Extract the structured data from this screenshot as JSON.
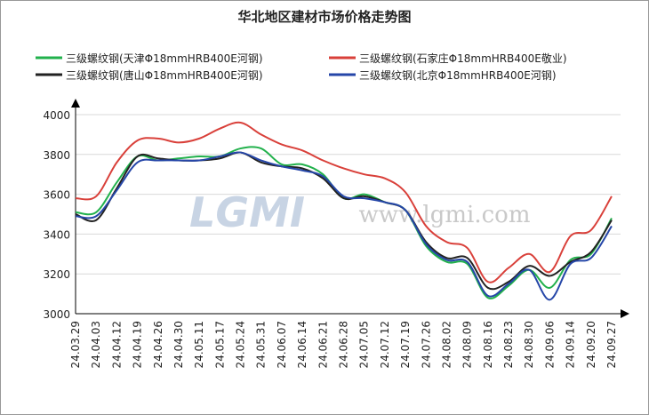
{
  "chart_data": {
    "type": "line",
    "title": "华北地区建材市场价格走势图",
    "watermark": "LGMI",
    "watermark_url": "www.lgmi.com",
    "categories": [
      "24.03.29",
      "24.04.03",
      "24.04.12",
      "24.04.19",
      "24.04.26",
      "24.04.30",
      "24.05.11",
      "24.05.17",
      "24.05.24",
      "24.05.31",
      "24.06.07",
      "24.06.14",
      "24.06.21",
      "24.06.28",
      "24.07.05",
      "24.07.12",
      "24.07.19",
      "24.07.26",
      "24.08.02",
      "24.08.09",
      "24.08.16",
      "24.08.23",
      "24.08.30",
      "24.09.06",
      "24.09.14",
      "24.09.20",
      "24.09.27"
    ],
    "series": [
      {
        "name": "三级螺纹钢(天津Φ18mmHRB400E河钢)",
        "color": "#22b14c",
        "values": [
          3510,
          3510,
          3660,
          3790,
          3770,
          3780,
          3790,
          3790,
          3830,
          3830,
          3750,
          3750,
          3700,
          3580,
          3600,
          3560,
          3520,
          3340,
          3260,
          3250,
          3080,
          3140,
          3220,
          3130,
          3270,
          3300,
          3480
        ]
      },
      {
        "name": "三级螺纹钢(石家庄Φ18mmHRB400E敬业)",
        "color": "#d9403a",
        "values": [
          3580,
          3590,
          3760,
          3870,
          3880,
          3860,
          3880,
          3930,
          3960,
          3900,
          3850,
          3820,
          3770,
          3730,
          3700,
          3680,
          3610,
          3440,
          3360,
          3330,
          3160,
          3230,
          3300,
          3210,
          3390,
          3420,
          3590
        ]
      },
      {
        "name": "三级螺纹钢(唐山Φ18mmHRB400E河钢)",
        "color": "#222222",
        "values": [
          3500,
          3470,
          3630,
          3790,
          3780,
          3770,
          3770,
          3780,
          3810,
          3760,
          3740,
          3730,
          3680,
          3580,
          3590,
          3560,
          3520,
          3360,
          3280,
          3280,
          3130,
          3160,
          3240,
          3190,
          3260,
          3310,
          3470
        ]
      },
      {
        "name": "三级螺纹钢(北京Φ18mmHRB400E河钢)",
        "color": "#2546a8",
        "values": [
          3490,
          3490,
          3620,
          3760,
          3770,
          3770,
          3770,
          3790,
          3810,
          3770,
          3740,
          3720,
          3690,
          3590,
          3580,
          3560,
          3520,
          3350,
          3270,
          3260,
          3090,
          3150,
          3220,
          3070,
          3250,
          3280,
          3440
        ]
      }
    ],
    "ylim": [
      3000,
      4000
    ],
    "yticks": [
      3000,
      3200,
      3400,
      3600,
      3800,
      4000
    ],
    "grid": true
  }
}
